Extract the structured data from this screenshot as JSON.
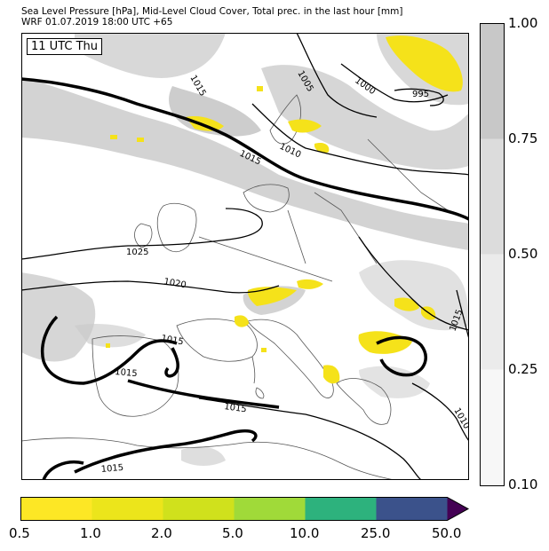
{
  "title": {
    "line1": "Sea Level Pressure [hPa], Mid-Level Cloud Cover, Total prec. in the last hour [mm]",
    "line2": "WRF 01.07.2019 18:00 UTC +65"
  },
  "valid_time_label": "11 UTC Thu",
  "cloud_colorbar": {
    "ticks": [
      "1.00",
      "0.75",
      "0.50",
      "0.25",
      "0.10"
    ],
    "colors": [
      "#c8c8c8",
      "#dcdcdc",
      "#ebebeb",
      "#f7f7f7"
    ]
  },
  "precip_colorbar": {
    "ticks": [
      "0.5",
      "1.0",
      "2.0",
      "5.0",
      "10.0",
      "25.0",
      "50.0"
    ],
    "colors": [
      "#fde725",
      "#ece51b",
      "#d0e11c",
      "#a0da39",
      "#2db27d",
      "#3b528b",
      "#440154"
    ]
  },
  "isobar_labels": [
    "1015",
    "1005",
    "1000",
    "995",
    "1010",
    "1015",
    "1025",
    "1020",
    "1015",
    "1015",
    "1015",
    "1015",
    "1015",
    "1010"
  ],
  "colors": {
    "cloud": "#c8c8c8",
    "precip": "#f5e21a",
    "isobar": "#000000",
    "coast": "#555555"
  }
}
